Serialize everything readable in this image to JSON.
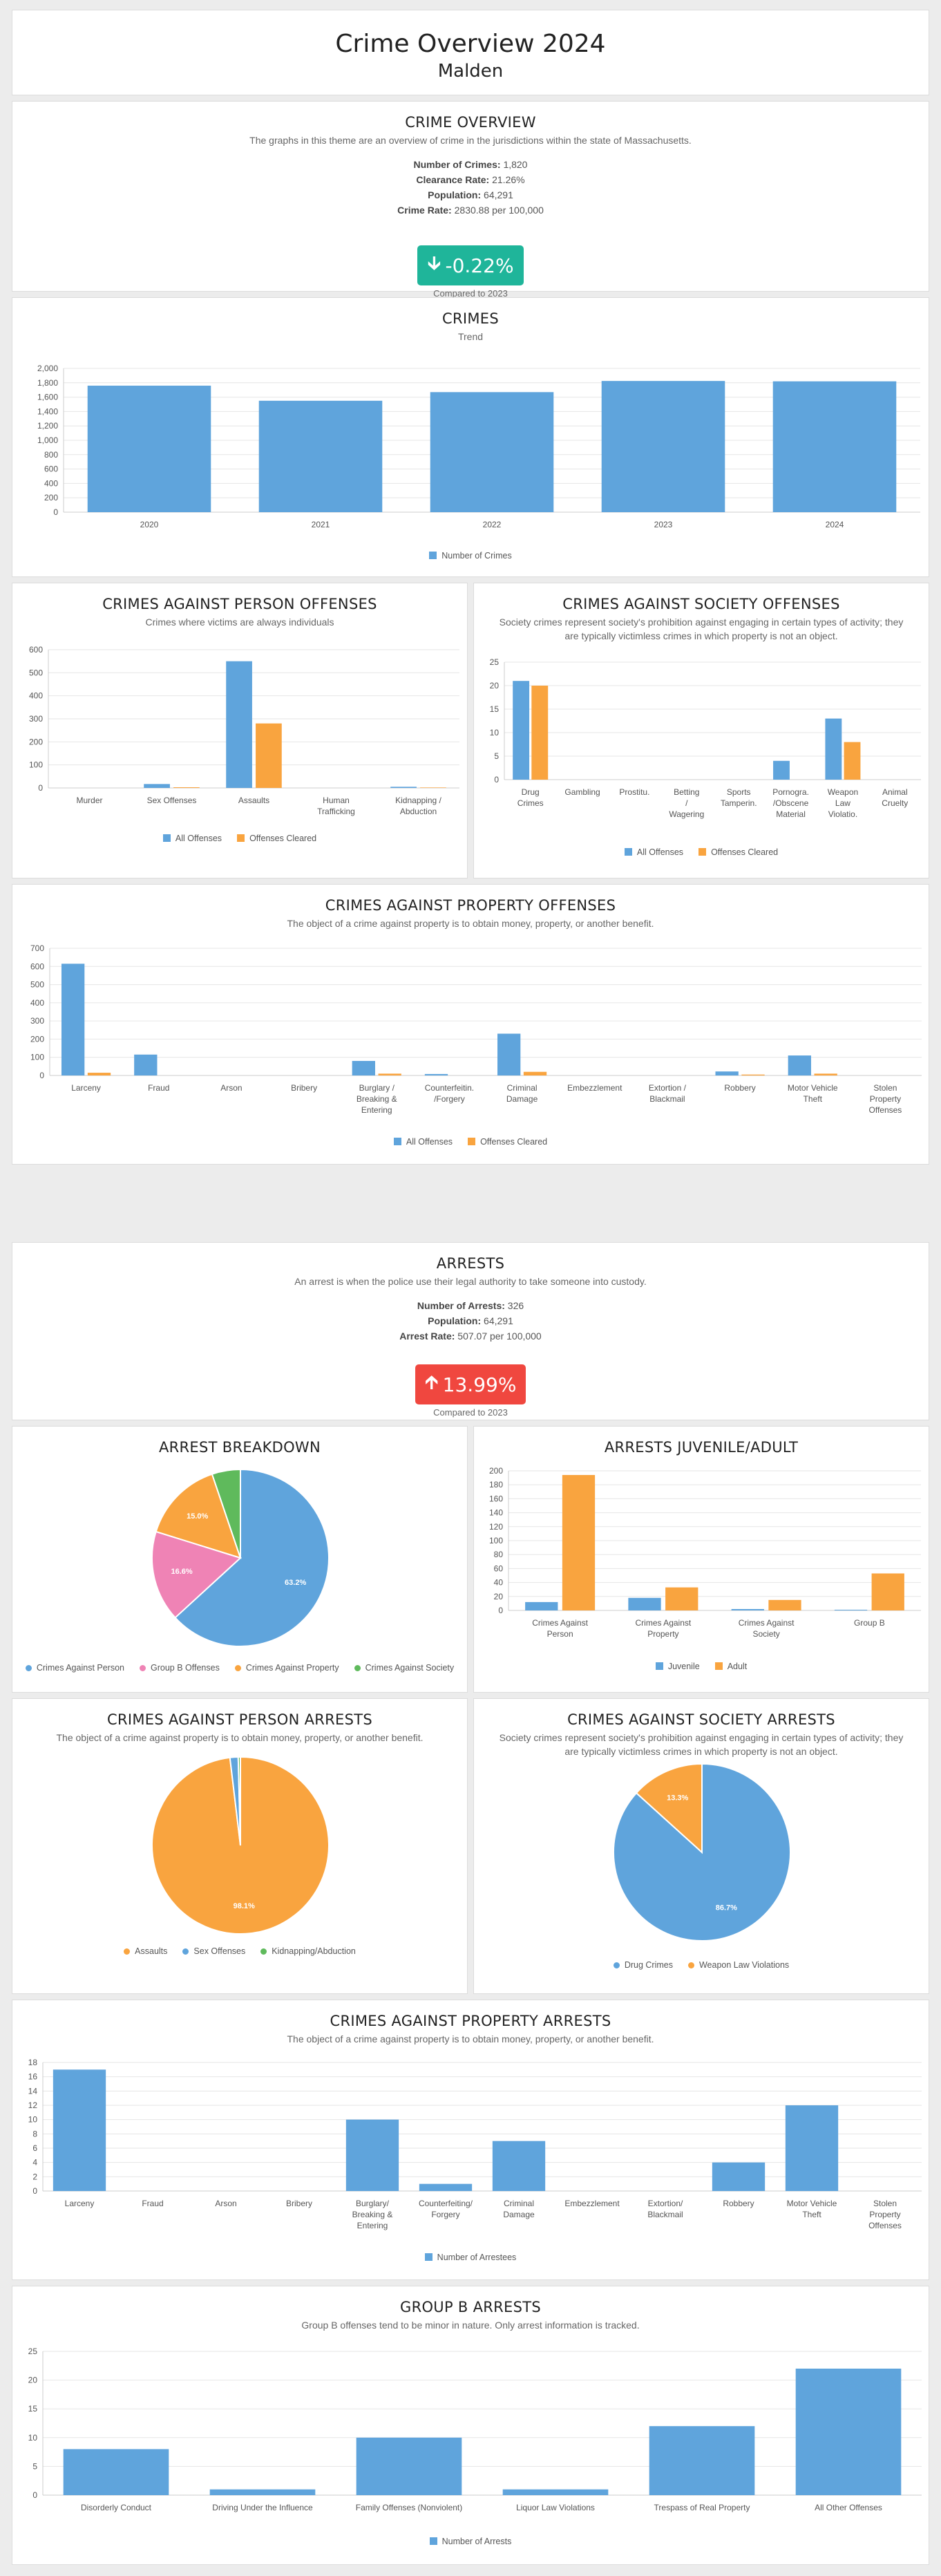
{
  "header": {
    "title": "Crime Overview 2024",
    "subtitle": "Malden"
  },
  "colors": {
    "blue": "#5fa4dc",
    "orange": "#f9a43f",
    "pink": "#ef83b5",
    "green": "#5fba5c",
    "teal": "#1fb59a",
    "red": "#f0473f"
  },
  "overview": {
    "title": "CRIME OVERVIEW",
    "description": "The graphs in this theme are an overview of crime in the jurisdictions within the state of Massachusetts.",
    "stats": [
      {
        "label": "Number of Crimes:",
        "value": "1,820"
      },
      {
        "label": "Clearance Rate:",
        "value": "21.26%"
      },
      {
        "label": "Population:",
        "value": "64,291"
      },
      {
        "label": "Crime Rate:",
        "value": "2830.88 per 100,000"
      }
    ],
    "change": "-0.22%",
    "compared": "Compared to 2023"
  },
  "arrests_overview": {
    "title": "ARRESTS",
    "description": "An arrest is when the police use their legal authority to take someone into custody.",
    "stats": [
      {
        "label": "Number of Arrests:",
        "value": "326"
      },
      {
        "label": "Population:",
        "value": "64,291"
      },
      {
        "label": "Arrest Rate:",
        "value": "507.07 per 100,000"
      }
    ],
    "change": "13.99%",
    "compared": "Compared to 2023"
  },
  "chart_data": [
    {
      "id": "crimes",
      "type": "bar",
      "title": "CRIMES",
      "subtitle": "Trend",
      "categories": [
        "2020",
        "2021",
        "2022",
        "2023",
        "2024"
      ],
      "series": [
        {
          "name": "Number of Crimes",
          "values": [
            1760,
            1550,
            1670,
            1825,
            1820
          ]
        }
      ],
      "ylim": [
        0,
        2000
      ],
      "ticks": [
        0,
        200,
        400,
        600,
        800,
        1000,
        1200,
        1400,
        1600,
        1800,
        2000
      ],
      "tick_labels": [
        "0",
        "200",
        "400",
        "600",
        "800",
        "1,000",
        "1,200",
        "1,400",
        "1,600",
        "1,800",
        "2,000"
      ]
    },
    {
      "id": "person",
      "type": "bar",
      "title": "CRIMES AGAINST PERSON OFFENSES",
      "subtitle": "Crimes where victims are always individuals",
      "categories": [
        [
          "Murder"
        ],
        [
          "Sex Offenses"
        ],
        [
          "Assaults"
        ],
        [
          "Human",
          "Trafficking"
        ],
        [
          "Kidnapping /",
          "Abduction"
        ]
      ],
      "series": [
        {
          "name": "All Offenses",
          "values": [
            0,
            17,
            550,
            0,
            5
          ]
        },
        {
          "name": "Offenses Cleared",
          "values": [
            0,
            3,
            280,
            0,
            2
          ]
        }
      ],
      "ylim": [
        0,
        600
      ],
      "ticks": [
        0,
        100,
        200,
        300,
        400,
        500,
        600
      ],
      "tick_labels": [
        "0",
        "100",
        "200",
        "300",
        "400",
        "500",
        "600"
      ]
    },
    {
      "id": "society",
      "type": "bar",
      "title": "CRIMES AGAINST SOCIETY OFFENSES",
      "subtitle": "Society crimes represent society's prohibition against engaging in certain types of activity; they are typically victimless crimes in which property is not an object.",
      "categories": [
        [
          "Drug",
          "Crimes"
        ],
        [
          "Gambling"
        ],
        [
          "Prostitu."
        ],
        [
          "Betting",
          "/",
          "Wagering"
        ],
        [
          "Sports",
          "Tamperin."
        ],
        [
          "Pornogra.",
          "/Obscene",
          "Material"
        ],
        [
          "Weapon",
          "Law",
          "Violatio."
        ],
        [
          "Animal",
          "Cruelty"
        ]
      ],
      "series": [
        {
          "name": "All Offenses",
          "values": [
            21,
            0,
            0,
            0,
            0,
            4,
            13,
            0
          ]
        },
        {
          "name": "Offenses Cleared",
          "values": [
            20,
            0,
            0,
            0,
            0,
            0,
            8,
            0
          ]
        }
      ],
      "ylim": [
        0,
        25
      ],
      "ticks": [
        0,
        5,
        10,
        15,
        20,
        25
      ],
      "tick_labels": [
        "0",
        "5",
        "10",
        "15",
        "20",
        "25"
      ]
    },
    {
      "id": "property",
      "type": "bar",
      "title": "CRIMES AGAINST PROPERTY OFFENSES",
      "subtitle": "The object of a crime against property is to obtain money, property, or another benefit.",
      "categories": [
        [
          "Larceny"
        ],
        [
          "Fraud"
        ],
        [
          "Arson"
        ],
        [
          "Bribery"
        ],
        [
          "Burglary /",
          "Breaking &",
          "Entering"
        ],
        [
          "Counterfeitin.",
          "/Forgery"
        ],
        [
          "Criminal",
          "Damage"
        ],
        [
          "Embezzlement"
        ],
        [
          "Extortion /",
          "Blackmail"
        ],
        [
          "Robbery"
        ],
        [
          "Motor Vehicle",
          "Theft"
        ],
        [
          "Stolen",
          "Property",
          "Offenses"
        ]
      ],
      "series": [
        {
          "name": "All Offenses",
          "values": [
            615,
            115,
            0,
            0,
            80,
            8,
            230,
            0,
            0,
            22,
            110,
            0
          ]
        },
        {
          "name": "Offenses Cleared",
          "values": [
            15,
            0,
            0,
            0,
            10,
            0,
            20,
            0,
            0,
            5,
            10,
            0
          ]
        }
      ],
      "ylim": [
        0,
        700
      ],
      "ticks": [
        0,
        100,
        200,
        300,
        400,
        500,
        600,
        700
      ],
      "tick_labels": [
        "0",
        "100",
        "200",
        "300",
        "400",
        "500",
        "600",
        "700"
      ]
    },
    {
      "id": "breakdown",
      "type": "pie",
      "title": "ARREST BREAKDOWN",
      "labels": [
        "Crimes Against Person",
        "Group B Offenses",
        "Crimes Against Property",
        "Crimes Against Society"
      ],
      "values": [
        63.2,
        16.6,
        15.0,
        5.2
      ],
      "display": [
        "63.2%",
        "16.6%",
        "15.0%",
        ""
      ]
    },
    {
      "id": "juvenile",
      "type": "bar",
      "title": "ARRESTS JUVENILE/ADULT",
      "categories": [
        [
          "Crimes Against",
          "Person"
        ],
        [
          "Crimes Against",
          "Property"
        ],
        [
          "Crimes Against",
          "Society"
        ],
        [
          "Group B"
        ]
      ],
      "series": [
        {
          "name": "Juvenile",
          "values": [
            12,
            18,
            2,
            1
          ]
        },
        {
          "name": "Adult",
          "values": [
            194,
            33,
            15,
            53
          ]
        }
      ],
      "ylim": [
        0,
        200
      ],
      "ticks": [
        0,
        20,
        40,
        60,
        80,
        100,
        120,
        140,
        160,
        180,
        200
      ],
      "tick_labels": [
        "0",
        "20",
        "40",
        "60",
        "80",
        "100",
        "120",
        "140",
        "160",
        "180",
        "200"
      ]
    },
    {
      "id": "person_arrests",
      "type": "pie",
      "title": "CRIMES AGAINST PERSON ARRESTS",
      "subtitle": "The object of a crime against property is to obtain money, property, or another benefit.",
      "labels": [
        "Assaults",
        "Sex Offenses",
        "Kidnapping/Abduction"
      ],
      "values": [
        98.1,
        1.5,
        0.4
      ],
      "display": [
        "98.1%",
        "",
        ""
      ]
    },
    {
      "id": "society_arrests",
      "type": "pie",
      "title": "CRIMES AGAINST SOCIETY ARRESTS",
      "subtitle": "Society crimes represent society's prohibition against engaging in certain types of activity; they are typically victimless crimes in which property is not an object.",
      "labels": [
        "Drug Crimes",
        "Weapon Law Violations"
      ],
      "values": [
        86.7,
        13.3
      ],
      "display": [
        "86.7%",
        "13.3%"
      ]
    },
    {
      "id": "property_arrests",
      "type": "bar",
      "title": "CRIMES AGAINST PROPERTY ARRESTS",
      "subtitle": "The object of a crime against property is to obtain money, property, or another benefit.",
      "categories": [
        [
          "Larceny"
        ],
        [
          "Fraud"
        ],
        [
          "Arson"
        ],
        [
          "Bribery"
        ],
        [
          "Burglary/",
          "Breaking &",
          "Entering"
        ],
        [
          "Counterfeiting/",
          "Forgery"
        ],
        [
          "Criminal",
          "Damage"
        ],
        [
          "Embezzlement"
        ],
        [
          "Extortion/",
          "Blackmail"
        ],
        [
          "Robbery"
        ],
        [
          "Motor Vehicle",
          "Theft"
        ],
        [
          "Stolen",
          "Property",
          "Offenses"
        ]
      ],
      "series": [
        {
          "name": "Number of Arrestees",
          "values": [
            17,
            0,
            0,
            0,
            10,
            1,
            7,
            0,
            0,
            4,
            12,
            0
          ]
        }
      ],
      "ylim": [
        0,
        18
      ],
      "ticks": [
        0,
        2,
        4,
        6,
        8,
        10,
        12,
        14,
        16,
        18
      ],
      "tick_labels": [
        "0",
        "2",
        "4",
        "6",
        "8",
        "10",
        "12",
        "14",
        "16",
        "18"
      ]
    },
    {
      "id": "groupb",
      "type": "bar",
      "title": "GROUP B ARRESTS",
      "subtitle": "Group B offenses tend to be minor in nature. Only arrest information is tracked.",
      "categories": [
        [
          "Disorderly Conduct"
        ],
        [
          "Driving Under the Influence"
        ],
        [
          "Family Offenses (Nonviolent)"
        ],
        [
          "Liquor Law Violations"
        ],
        [
          "Trespass of Real Property"
        ],
        [
          "All Other Offenses"
        ]
      ],
      "series": [
        {
          "name": "Number of Arrests",
          "values": [
            8,
            1,
            10,
            1,
            12,
            22
          ]
        }
      ],
      "ylim": [
        0,
        25
      ],
      "ticks": [
        0,
        5,
        10,
        15,
        20,
        25
      ],
      "tick_labels": [
        "0",
        "5",
        "10",
        "15",
        "20",
        "25"
      ]
    }
  ]
}
